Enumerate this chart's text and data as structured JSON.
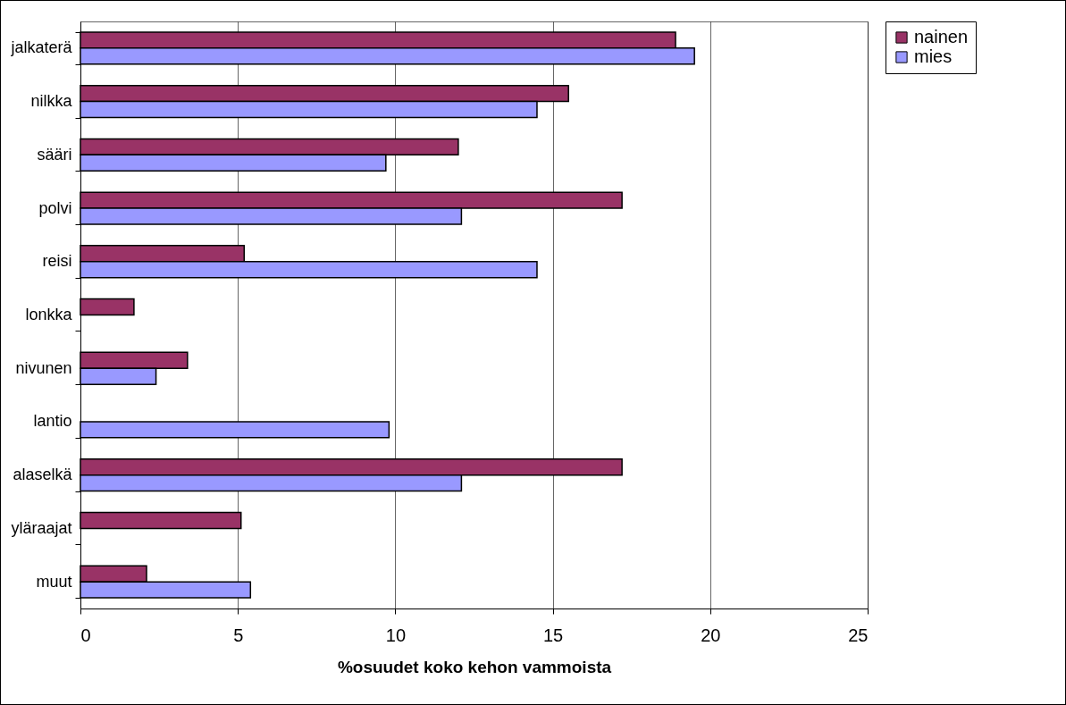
{
  "chart_data": {
    "type": "bar",
    "orientation": "horizontal",
    "xlabel": "%osuudet koko kehon vammoista",
    "categories": [
      "jalkaterä",
      "nilkka",
      "sääri",
      "polvi",
      "reisi",
      "lonkka",
      "nivunen",
      "lantio",
      "alaselkä",
      "yläraajat",
      "muut"
    ],
    "series": [
      {
        "name": "nainen",
        "color": "#993366",
        "values": [
          18.9,
          15.5,
          12.0,
          17.2,
          5.2,
          1.7,
          3.4,
          null,
          17.2,
          5.1,
          2.1
        ]
      },
      {
        "name": "mies",
        "color": "#9999ff",
        "values": [
          19.5,
          14.5,
          9.7,
          12.1,
          14.5,
          null,
          2.4,
          9.8,
          12.1,
          null,
          5.4
        ]
      }
    ],
    "xlim": [
      0,
      25
    ],
    "xticks": [
      0,
      5,
      10,
      15,
      20,
      25
    ],
    "grid": "x",
    "legend": "right"
  }
}
